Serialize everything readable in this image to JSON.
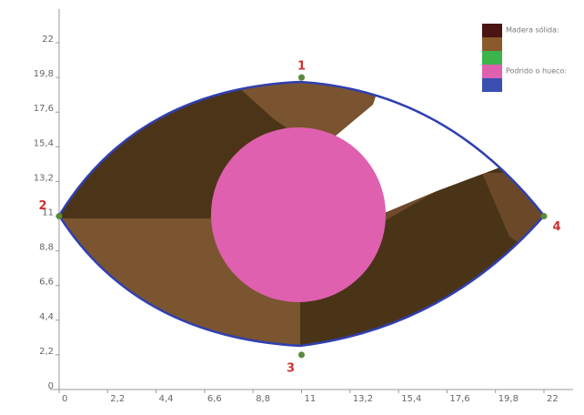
{
  "chart_data": {
    "type": "tomogram",
    "xlim": [
      0,
      22
    ],
    "ylim": [
      0,
      22
    ],
    "xticks": [
      0,
      {
        "value": 2.2,
        "label": "2,2"
      },
      {
        "value": 4.4,
        "label": "4,4"
      },
      {
        "value": 6.6,
        "label": "6,6"
      },
      {
        "value": 8.8,
        "label": "8,8"
      },
      11,
      {
        "value": 13.2,
        "label": "13,2"
      },
      {
        "value": 15.4,
        "label": "15,4"
      },
      {
        "value": 17.6,
        "label": "17,6"
      },
      {
        "value": 19.8,
        "label": "19,8"
      },
      22
    ],
    "yticks": [
      0,
      {
        "value": 2.2,
        "label": "2,2"
      },
      {
        "value": 4.4,
        "label": "4,4"
      },
      {
        "value": 6.6,
        "label": "6,6"
      },
      {
        "value": 8.8,
        "label": "8,8"
      },
      11,
      {
        "value": 13.2,
        "label": "13,2"
      },
      {
        "value": 15.4,
        "label": "15,4"
      },
      {
        "value": 17.6,
        "label": "17,6"
      },
      {
        "value": 19.8,
        "label": "19,8"
      },
      22
    ],
    "legend": [
      {
        "name": "Madera sólida:",
        "color": "#4a1410"
      },
      {
        "name": null,
        "color": "#8b5a2b"
      },
      {
        "name": null,
        "color": "#3cb44b"
      },
      {
        "name": "Podrido o hueco:",
        "color": "#e060b0"
      },
      {
        "name": null,
        "color": "#3a4fb0"
      }
    ],
    "sensors": {
      "labels": [
        "1",
        "2",
        "3",
        "4"
      ],
      "x": [
        11,
        0,
        11,
        22
      ],
      "y": [
        19.8,
        11,
        2.2,
        11
      ],
      "color": "#5a8a3a"
    },
    "boundary_color": "#3040b0"
  }
}
